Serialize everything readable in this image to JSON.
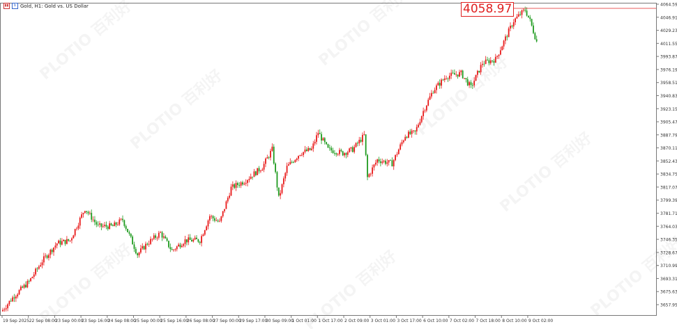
{
  "header": {
    "title": "Gold, H1:  Gold vs. US Dollar"
  },
  "watermark": "PLOTIO 百利好",
  "current_price_label": "4058.97",
  "colors": {
    "up": "#e81818",
    "down": "#1e9a1e",
    "axis": "#777777",
    "price_label": "#e02020"
  },
  "chart_data": {
    "type": "candlestick",
    "timeframe": "H1",
    "ylim": [
      3650,
      4068
    ],
    "y_ticks": [
      "4064.59",
      "4046.91",
      "4029.23",
      "4011.55",
      "3993.87",
      "3976.19",
      "3958.51",
      "3940.83",
      "3923.15",
      "3905.47",
      "3887.79",
      "3870.11",
      "3852.43",
      "3834.75",
      "3817.07",
      "3799.39",
      "3781.71",
      "3764.03",
      "3746.35",
      "3728.67",
      "3710.99",
      "3693.31",
      "3675.63",
      "3657.95"
    ],
    "x_ticks": [
      "19 Sep 2025",
      "22 Sep 08:00",
      "23 Sep 00:00",
      "23 Sep 16:00",
      "24 Sep 08:00",
      "25 Sep 00:00",
      "25 Sep 16:00",
      "26 Sep 08:00",
      "27 Sep 00:00",
      "29 Sep 17:00",
      "30 Sep 09:00",
      "1 Oct 01:00",
      "1 Oct 17:00",
      "2 Oct 09:00",
      "3 Oct 01:00",
      "3 Oct 17:00",
      "6 Oct 10:00",
      "7 Oct 02:00",
      "7 Oct 18:00",
      "8 Oct 10:00",
      "9 Oct 02:00"
    ],
    "bars_per_x_tick": 16,
    "approx_close_path": [
      [
        0,
        3651
      ],
      [
        7,
        3670
      ],
      [
        16,
        3689
      ],
      [
        24,
        3717
      ],
      [
        33,
        3741
      ],
      [
        41,
        3745
      ],
      [
        50,
        3788
      ],
      [
        58,
        3764
      ],
      [
        67,
        3764
      ],
      [
        73,
        3773
      ],
      [
        82,
        3726
      ],
      [
        88,
        3741
      ],
      [
        96,
        3755
      ],
      [
        103,
        3731
      ],
      [
        111,
        3745
      ],
      [
        120,
        3745
      ],
      [
        126,
        3778
      ],
      [
        132,
        3769
      ],
      [
        139,
        3816
      ],
      [
        147,
        3825
      ],
      [
        158,
        3844
      ],
      [
        164,
        3868
      ],
      [
        168,
        3802
      ],
      [
        173,
        3844
      ],
      [
        181,
        3863
      ],
      [
        188,
        3868
      ],
      [
        192,
        3891
      ],
      [
        198,
        3868
      ],
      [
        207,
        3863
      ],
      [
        213,
        3868
      ],
      [
        220,
        3887
      ],
      [
        222,
        3830
      ],
      [
        228,
        3854
      ],
      [
        237,
        3849
      ],
      [
        245,
        3887
      ],
      [
        251,
        3891
      ],
      [
        256,
        3920
      ],
      [
        262,
        3948
      ],
      [
        270,
        3967
      ],
      [
        279,
        3971
      ],
      [
        285,
        3952
      ],
      [
        292,
        3985
      ],
      [
        300,
        3990
      ],
      [
        304,
        4009
      ],
      [
        311,
        4042
      ],
      [
        315,
        4051
      ],
      [
        318,
        4057
      ],
      [
        321,
        4042
      ],
      [
        325,
        4014
      ]
    ]
  }
}
